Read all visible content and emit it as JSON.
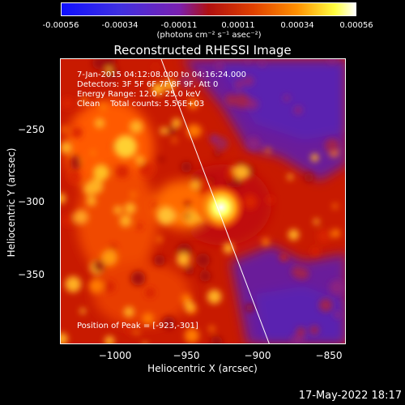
{
  "colorbar": {
    "ticks": [
      "-0.00056",
      "-0.00034",
      "-0.00011",
      "0.00011",
      "0.00034",
      "0.00056"
    ],
    "unit": "(photons cm⁻² s⁻¹ asec⁻²)"
  },
  "chart_data": {
    "type": "heatmap",
    "title": "Reconstructed RHESSI Image",
    "xlabel": "Heliocentric X (arcsec)",
    "ylabel": "Heliocentric Y (arcsec)",
    "xlim": [
      -1034,
      -834
    ],
    "ylim": [
      -397,
      -203
    ],
    "xticks": [
      "−1000",
      "−950",
      "−900",
      "−850"
    ],
    "yticks": [
      "−250",
      "−300",
      "−350"
    ],
    "peak": {
      "x": -923,
      "y": -301
    },
    "annotations": {
      "time": "7-Jan-2015 04:12:08.000 to 04:16:24.000",
      "detectors": "Detectors: 3F 5F 6F 7F 8F 9F, Att 0",
      "energy": "Energy Range: 12.0 - 25.0 keV",
      "clean": "Clean    Total counts: 5.56E+03",
      "peak_label": "Position of Peak = [-923,-301]"
    }
  },
  "footer": {
    "timestamp": "17-May-2022 18:17"
  }
}
